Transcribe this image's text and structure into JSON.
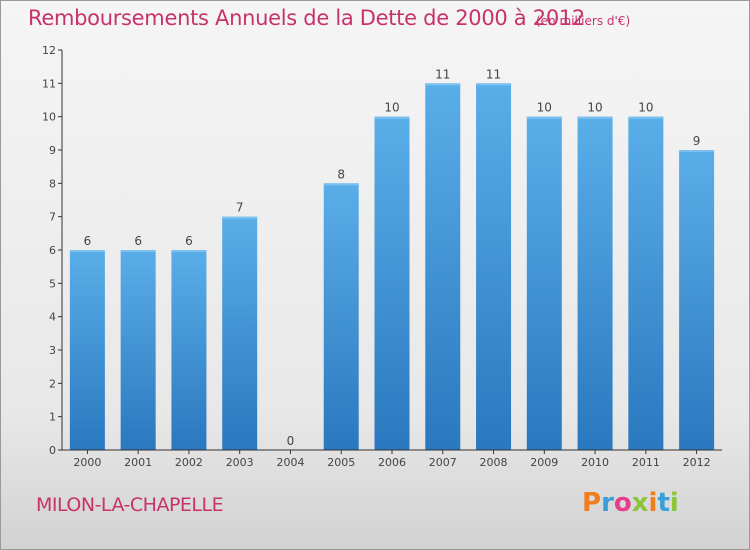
{
  "header": {
    "title": "Remboursements Annuels de la Dette de 2000 à 2012",
    "unit": "(en milliers d'€)"
  },
  "footer": {
    "commune": "MILON-LA-CHAPELLE",
    "logo_text": "Proxiti",
    "logo_letters": [
      "P",
      "r",
      "o",
      "x",
      "i",
      "t",
      "i"
    ],
    "logo_colors": [
      "#f07d1e",
      "#3a9fd8",
      "#e63e8c",
      "#8cc43c",
      "#f07d1e",
      "#3a9fd8",
      "#8cc43c"
    ]
  },
  "chart_data": {
    "type": "bar",
    "title": "Remboursements Annuels de la Dette de 2000 à 2012",
    "subtitle": "(en milliers d'€)",
    "xlabel": "",
    "ylabel": "",
    "categories": [
      "2000",
      "2001",
      "2002",
      "2003",
      "2004",
      "2005",
      "2006",
      "2007",
      "2008",
      "2009",
      "2010",
      "2011",
      "2012"
    ],
    "values": [
      6,
      6,
      6,
      7,
      0,
      8,
      10,
      11,
      11,
      10,
      10,
      10,
      9
    ],
    "data_labels": [
      "6",
      "6",
      "6",
      "7",
      "0",
      "8",
      "10",
      "11",
      "11",
      "10",
      "10",
      "10",
      "9"
    ],
    "ylim": [
      0,
      12
    ],
    "yticks": [
      0,
      1,
      2,
      3,
      4,
      5,
      6,
      7,
      8,
      9,
      10,
      11,
      12
    ],
    "ytick_labels": [
      "0",
      "1",
      "2",
      "3",
      "4",
      "5",
      "6",
      "7",
      "8",
      "9",
      "10",
      "11",
      "12"
    ],
    "grid": false,
    "colors": {
      "bar_top": "#5aaee8",
      "bar_bottom": "#2a78bf",
      "axis": "#333333",
      "text": "#444444"
    }
  }
}
